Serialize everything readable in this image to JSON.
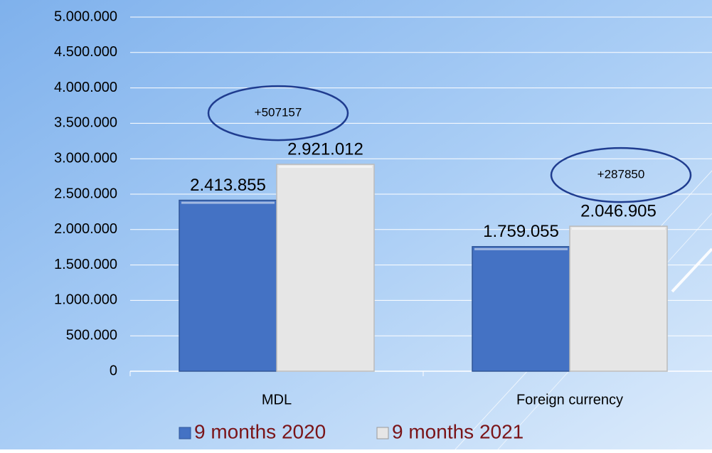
{
  "chart_data": {
    "type": "bar",
    "categories": [
      "MDL",
      "Foreign currency"
    ],
    "series": [
      {
        "name": "9 months 2020",
        "color": "#4472c4",
        "values": [
          2413855,
          1759055
        ],
        "value_labels": [
          "2.413.855",
          "1.759.055"
        ]
      },
      {
        "name": "9 months 2021",
        "color": "#e6e6e6",
        "values": [
          2921012,
          2046905
        ],
        "value_labels": [
          "2.921.012",
          "2.046.905"
        ]
      }
    ],
    "annotations": [
      "+507157",
      "+287850"
    ],
    "ylim": [
      0,
      5000000
    ],
    "yticks": [
      0,
      {
        "value": 500000,
        "label": "500.000"
      },
      {
        "value": 1000000,
        "label": "1.000.000"
      },
      {
        "value": 1500000,
        "label": "1.500.000"
      },
      {
        "value": 2000000,
        "label": "2.000.000"
      },
      {
        "value": 2500000,
        "label": "2.500.000"
      },
      {
        "value": 3000000,
        "label": "3.000.000"
      },
      {
        "value": 3500000,
        "label": "3.500.000"
      },
      {
        "value": 4000000,
        "label": "4.000.000"
      },
      {
        "value": 4500000,
        "label": "4.500.000"
      },
      {
        "value": 5000000,
        "label": "5.000.000"
      }
    ],
    "grid": true,
    "legend": "bottom"
  }
}
